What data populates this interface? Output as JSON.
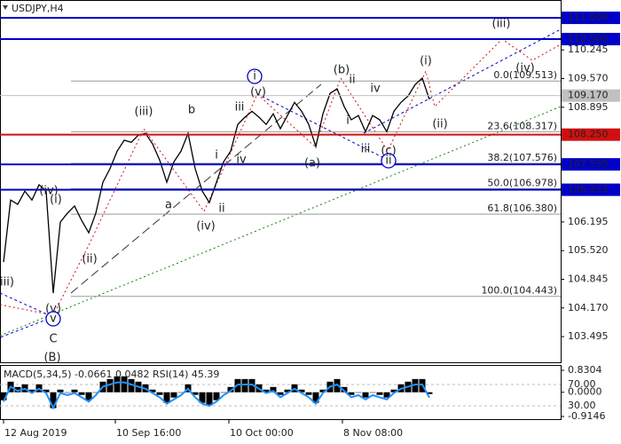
{
  "chart_data": [
    {
      "type": "line",
      "title": "USDJPY,H4",
      "xlim": [
        -0.5,
        78.5
      ],
      "ylim": [
        102.89,
        111.42
      ],
      "xticks": [
        {
          "value": 0,
          "label": "12 Aug 2019"
        },
        {
          "value": 15.75,
          "label": "10 Sep 16:00"
        },
        {
          "value": 31.75,
          "label": "10 Oct 00:00"
        },
        {
          "value": 47.75,
          "label": "8 Nov 08:00"
        }
      ],
      "yticks": [
        110.245,
        {
          "value": 109.57,
          "label": "109.570"
        },
        108.895,
        106.195,
        {
          "value": 105.52,
          "label": "105.520"
        },
        104.845,
        {
          "value": 104.17,
          "label": "104.170"
        },
        103.495
      ],
      "series": [
        {
          "color": "#000000",
          "values": [
            105.25,
            106.71,
            106.61,
            106.92,
            106.71,
            107.07,
            106.92,
            104.52,
            106.19,
            106.4,
            106.57,
            106.23,
            105.94,
            106.4,
            107.13,
            107.45,
            107.86,
            108.12,
            108.07,
            108.24,
            108.28,
            108.03,
            107.65,
            107.13,
            107.61,
            107.86,
            108.28,
            107.45,
            106.92,
            106.65,
            107.13,
            107.61,
            107.86,
            108.49,
            108.66,
            108.8,
            108.66,
            108.49,
            108.74,
            108.39,
            108.7,
            109.01,
            108.8,
            108.49,
            107.97,
            108.74,
            109.22,
            109.33,
            108.91,
            108.6,
            108.7,
            108.32,
            108.7,
            108.6,
            108.32,
            108.8,
            109.01,
            109.16,
            109.43,
            109.58,
            109.08
          ]
        }
      ],
      "levels": [
        {
          "value": 111,
          "label": "111.000",
          "color": "#0000c8"
        },
        {
          "value": 110.5,
          "label": "110.500",
          "color": "#0000c8"
        },
        {
          "value": 109.17,
          "label": "109.170",
          "color": "#c0c0c0"
        },
        {
          "value": 108.25,
          "label": "108.250",
          "color": "#d01010"
        },
        {
          "value": 107.55,
          "label": "107.550",
          "color": "#0000c8"
        },
        {
          "value": 106.953,
          "label": "106.953",
          "color": "#0000c8"
        }
      ],
      "fib": [
        {
          "value": 109.513,
          "label": "0.0(109.513)"
        },
        {
          "value": 108.317,
          "label": "23.6(108.317)"
        },
        {
          "value": 107.576,
          "label": "38.2(107.576)"
        },
        {
          "value": 106.978,
          "label": "50.0(106.978)"
        },
        {
          "value": 106.38,
          "label": "61.8(106.380)"
        },
        {
          "value": 104.443,
          "label": "100.0(104.443)"
        }
      ],
      "annotations": [
        {
          "text": "iii)",
          "color": "#d01010"
        },
        {
          "text": "(iv)",
          "color": "#d01010"
        },
        {
          "text": "(i)",
          "color": "#d01010"
        },
        {
          "text": "(ii)",
          "color": "#d01010"
        },
        {
          "text": "(v)",
          "color": "#d01010"
        },
        {
          "text": "v",
          "color": "#0000c8",
          "circle": true
        },
        {
          "text": "C",
          "color": "#d01010"
        },
        {
          "text": "(B)",
          "color": "#108010"
        },
        {
          "text": "(iii)",
          "color": "#d01010"
        },
        {
          "text": "b",
          "color": "#666666"
        },
        {
          "text": "a",
          "color": "#666666"
        },
        {
          "text": "i",
          "color": "#666666"
        },
        {
          "text": "iv",
          "color": "#666666"
        },
        {
          "text": "ii",
          "color": "#666666"
        },
        {
          "text": "(iv)",
          "color": "#d01010"
        },
        {
          "text": "iii",
          "color": "#666666"
        },
        {
          "text": "i",
          "color": "#0000c8",
          "circle": true
        },
        {
          "text": "(v)",
          "color": "#d01010"
        },
        {
          "text": "(b)",
          "color": "#d01010"
        },
        {
          "text": "ii",
          "color": "#666666"
        },
        {
          "text": "iv",
          "color": "#666666"
        },
        {
          "text": "i",
          "color": "#666666"
        },
        {
          "text": "iii",
          "color": "#666666"
        },
        {
          "text": "(a)",
          "color": "#d01010"
        },
        {
          "text": "(c)",
          "color": "#d01010"
        },
        {
          "text": "ii",
          "color": "#0000c8",
          "circle": true
        },
        {
          "text": "(i)",
          "color": "#d01010"
        },
        {
          "text": "(ii)",
          "color": "#d01010"
        },
        {
          "text": "(iii)",
          "color": "#d01010"
        },
        {
          "text": "(iv)",
          "color": "#d01010"
        }
      ]
    },
    {
      "type": "bar",
      "title": "MACD(5,34,5) -0.0661 0.0482 RSI(14) 45.39",
      "xlim": [
        -0.5,
        78.5
      ],
      "ylim": [
        -0.9146,
        0.8304
      ],
      "y2lim": [
        10,
        96.7
      ],
      "yticks": [
        0.8304,
        {
          "value": 0,
          "label": "0.0000"
        },
        -0.9146
      ],
      "y2ticks": [
        {
          "value": 70,
          "label": "70.00"
        },
        {
          "value": 30,
          "label": "30.00"
        }
      ],
      "color": "#000000",
      "values": [
        -0.3,
        0.4,
        0.2,
        0.3,
        0.1,
        0.3,
        0.1,
        -0.6,
        0.1,
        0.0,
        0.1,
        -0.1,
        -0.3,
        0.0,
        0.4,
        0.5,
        0.6,
        0.6,
        0.5,
        0.4,
        0.3,
        0.1,
        -0.1,
        -0.4,
        -0.2,
        0.0,
        0.3,
        -0.1,
        -0.4,
        -0.5,
        -0.3,
        0.0,
        0.2,
        0.5,
        0.5,
        0.5,
        0.3,
        0.1,
        0.2,
        -0.1,
        0.1,
        0.3,
        0.1,
        -0.1,
        -0.4,
        0.1,
        0.4,
        0.5,
        0.2,
        -0.1,
        0.0,
        -0.2,
        0.0,
        -0.1,
        -0.2,
        0.1,
        0.3,
        0.4,
        0.5,
        0.5,
        -0.0661
      ],
      "series": [
        {
          "color": "#1e90ff",
          "axis": "y2",
          "values": [
            38,
            66,
            58,
            62,
            54,
            62,
            54,
            26,
            54,
            50,
            54,
            46,
            38,
            50,
            66,
            70,
            74,
            74,
            70,
            66,
            62,
            54,
            46,
            34,
            42,
            50,
            62,
            46,
            34,
            30,
            38,
            50,
            58,
            70,
            70,
            70,
            62,
            54,
            58,
            46,
            54,
            62,
            54,
            46,
            34,
            54,
            66,
            70,
            58,
            46,
            50,
            42,
            50,
            46,
            42,
            54,
            62,
            66,
            70,
            70,
            45.39
          ]
        }
      ]
    }
  ]
}
